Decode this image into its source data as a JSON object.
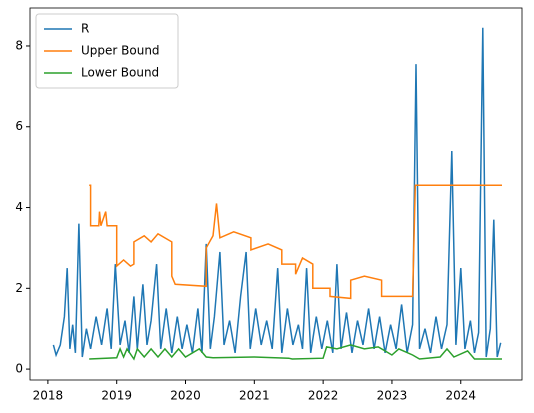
{
  "chart_data": {
    "type": "line",
    "legend": "upper left",
    "xlim": [
      2017.74,
      2024.89
    ],
    "ylim": [
      -0.27,
      8.94
    ],
    "xticks": [
      2018,
      2019,
      2020,
      2021,
      2022,
      2023,
      2024
    ],
    "yticks": [
      0,
      2,
      4,
      6,
      8
    ],
    "series": [
      {
        "name": "R",
        "color": "#1f77b4",
        "x": [
          2018.08,
          2018.12,
          2018.18,
          2018.24,
          2018.28,
          2018.32,
          2018.36,
          2018.4,
          2018.45,
          2018.5,
          2018.56,
          2018.62,
          2018.7,
          2018.78,
          2018.86,
          2018.92,
          2018.98,
          2019.05,
          2019.12,
          2019.18,
          2019.25,
          2019.3,
          2019.38,
          2019.44,
          2019.5,
          2019.58,
          2019.64,
          2019.72,
          2019.8,
          2019.88,
          2019.95,
          2020.02,
          2020.1,
          2020.18,
          2020.24,
          2020.3,
          2020.36,
          2020.42,
          2020.5,
          2020.56,
          2020.64,
          2020.72,
          2020.8,
          2020.88,
          2020.94,
          2021.02,
          2021.1,
          2021.18,
          2021.26,
          2021.34,
          2021.4,
          2021.48,
          2021.56,
          2021.64,
          2021.7,
          2021.76,
          2021.82,
          2021.9,
          2021.98,
          2022.06,
          2022.14,
          2022.2,
          2022.26,
          2022.34,
          2022.42,
          2022.5,
          2022.58,
          2022.66,
          2022.74,
          2022.82,
          2022.9,
          2022.98,
          2023.06,
          2023.14,
          2023.22,
          2023.3,
          2023.35,
          2023.4,
          2023.48,
          2023.56,
          2023.64,
          2023.72,
          2023.8,
          2023.87,
          2023.93,
          2024.0,
          2024.06,
          2024.14,
          2024.2,
          2024.26,
          2024.32,
          2024.37,
          2024.43,
          2024.48,
          2024.53,
          2024.58
        ],
        "values": [
          0.6,
          0.35,
          0.6,
          1.3,
          2.5,
          0.5,
          1.1,
          0.4,
          3.6,
          0.3,
          1.0,
          0.5,
          1.3,
          0.6,
          1.5,
          0.5,
          2.6,
          0.6,
          1.2,
          0.4,
          1.8,
          0.5,
          2.1,
          0.6,
          1.2,
          2.6,
          0.5,
          1.5,
          0.4,
          1.3,
          0.5,
          1.1,
          0.4,
          1.5,
          0.4,
          3.1,
          0.5,
          1.3,
          2.9,
          0.6,
          1.2,
          0.4,
          1.8,
          2.9,
          0.5,
          1.5,
          0.6,
          1.2,
          0.5,
          2.5,
          0.4,
          1.5,
          0.6,
          1.1,
          0.5,
          2.5,
          0.4,
          1.3,
          0.5,
          1.2,
          0.4,
          2.6,
          0.5,
          1.4,
          0.4,
          1.2,
          0.6,
          1.5,
          0.5,
          1.3,
          0.4,
          1.1,
          0.5,
          1.6,
          0.4,
          1.1,
          7.55,
          0.5,
          1.0,
          0.4,
          1.3,
          0.5,
          1.1,
          5.4,
          0.6,
          2.5,
          0.5,
          1.2,
          0.4,
          0.9,
          8.45,
          0.3,
          1.0,
          3.7,
          0.3,
          0.65
        ]
      },
      {
        "name": "Upper Bound",
        "color": "#ff7f0e",
        "x": [
          2018.6,
          2018.62,
          2018.62,
          2018.74,
          2018.75,
          2018.77,
          2018.84,
          2018.86,
          2019.0,
          2019.0,
          2019.1,
          2019.2,
          2019.25,
          2019.25,
          2019.4,
          2019.5,
          2019.6,
          2019.8,
          2019.8,
          2019.85,
          2020.3,
          2020.3,
          2020.4,
          2020.45,
          2020.5,
          2020.7,
          2020.95,
          2020.95,
          2021.2,
          2021.4,
          2021.4,
          2021.6,
          2021.6,
          2021.7,
          2021.85,
          2021.85,
          2022.1,
          2022.1,
          2022.4,
          2022.4,
          2022.6,
          2022.85,
          2022.85,
          2023.3,
          2023.34,
          2024.6
        ],
        "values": [
          4.55,
          4.55,
          3.55,
          3.55,
          3.9,
          3.55,
          3.9,
          3.55,
          3.55,
          2.55,
          2.7,
          2.55,
          2.6,
          3.15,
          3.3,
          3.15,
          3.35,
          3.15,
          2.3,
          2.1,
          2.05,
          3.0,
          3.3,
          4.1,
          3.25,
          3.4,
          3.25,
          2.95,
          3.1,
          2.95,
          2.6,
          2.6,
          2.35,
          2.75,
          2.6,
          2.0,
          2.0,
          1.8,
          1.75,
          2.2,
          2.3,
          2.2,
          1.8,
          1.8,
          4.55,
          4.55
        ]
      },
      {
        "name": "Lower Bound",
        "color": "#2ca02c",
        "x": [
          2018.6,
          2019.0,
          2019.05,
          2019.1,
          2019.15,
          2019.25,
          2019.3,
          2019.4,
          2019.5,
          2019.6,
          2019.7,
          2019.8,
          2019.9,
          2020.0,
          2020.2,
          2020.3,
          2020.4,
          2021.0,
          2021.5,
          2021.55,
          2022.0,
          2022.05,
          2022.2,
          2022.4,
          2022.6,
          2022.8,
          2023.0,
          2023.1,
          2023.3,
          2023.4,
          2023.7,
          2023.8,
          2023.9,
          2024.1,
          2024.2,
          2024.6
        ],
        "values": [
          0.25,
          0.28,
          0.5,
          0.3,
          0.5,
          0.25,
          0.5,
          0.3,
          0.5,
          0.3,
          0.5,
          0.3,
          0.5,
          0.3,
          0.5,
          0.3,
          0.28,
          0.3,
          0.27,
          0.25,
          0.27,
          0.55,
          0.5,
          0.6,
          0.5,
          0.55,
          0.35,
          0.5,
          0.35,
          0.25,
          0.3,
          0.5,
          0.3,
          0.45,
          0.25,
          0.25
        ]
      }
    ]
  }
}
